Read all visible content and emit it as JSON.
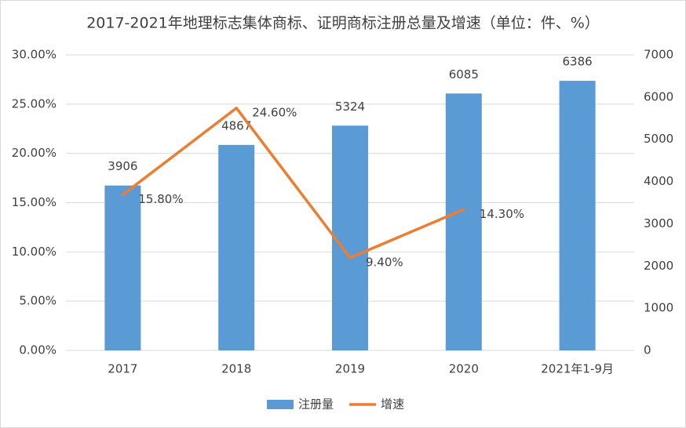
{
  "chart_data": {
    "type": "bar-line",
    "title": "2017-2021年地理标志集体商标、证明商标注册总量及增速（单位：件、%）",
    "categories": [
      "2017",
      "2018",
      "2019",
      "2020",
      "2021年1-9月"
    ],
    "series": [
      {
        "name": "注册量",
        "type": "bar",
        "axis": "y2",
        "color": "#5b9bd5",
        "values": [
          3906,
          4867,
          5324,
          6085,
          6386
        ]
      },
      {
        "name": "增速",
        "type": "line",
        "color": "#ed7d31",
        "values": [
          15.8,
          24.6,
          9.4,
          14.3,
          null
        ],
        "value_labels": [
          "15.80%",
          "24.60%",
          "9.40%",
          "14.30%",
          null
        ]
      }
    ],
    "ylim": [
      0,
      30
    ],
    "yticks": [
      {
        "value": 0,
        "label": "0.00%"
      },
      {
        "value": 5,
        "label": "5.00%"
      },
      {
        "value": 10,
        "label": "10.00%"
      },
      {
        "value": 15,
        "label": "15.00%"
      },
      {
        "value": 20,
        "label": "20.00%"
      },
      {
        "value": 25,
        "label": "25.00%"
      },
      {
        "value": 30,
        "label": "30.00%"
      }
    ],
    "y2lim": [
      0,
      7000
    ],
    "y2ticks": [
      0,
      1000,
      2000,
      3000,
      4000,
      5000,
      6000,
      7000
    ],
    "grid": true,
    "legend": "bottom"
  }
}
